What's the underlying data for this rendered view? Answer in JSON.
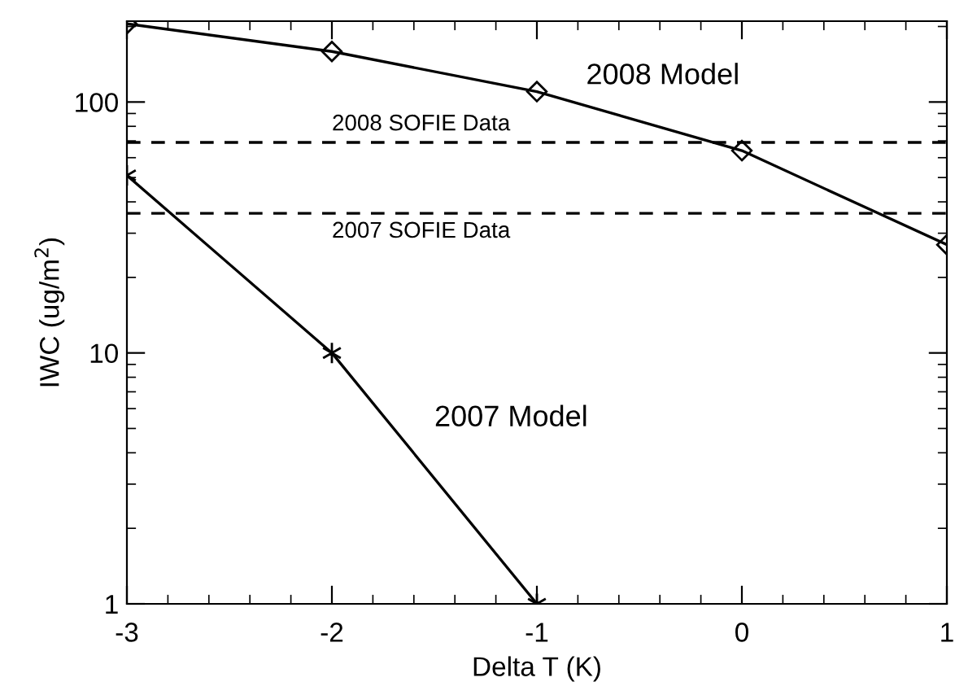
{
  "chart_data": {
    "type": "line",
    "xlabel": "Delta T (K)",
    "ylabel": "IWC (ug/m$^{2}$)",
    "x": [
      -3,
      -2,
      -1,
      0,
      1
    ],
    "series": [
      {
        "name": "2008 Model",
        "color": "#000000",
        "marker": "diamond",
        "values": [
          205,
          159,
          110,
          64,
          27
        ]
      },
      {
        "name": "2007 Model",
        "color": "#000000",
        "marker": "cross",
        "values": [
          51,
          10,
          1,
          null,
          null
        ]
      }
    ],
    "log": "y",
    "xlim": [
      -3,
      1
    ],
    "ylim": [
      1,
      210
    ],
    "xticks": [
      -3,
      -2,
      -1,
      0,
      1
    ],
    "yticks": [
      1,
      10,
      100
    ],
    "ref_lines": [
      {
        "axis": "y",
        "value": 69,
        "label": "2008 SOFIE Data",
        "color": "#000000",
        "line_style": "dashed"
      },
      {
        "axis": "y",
        "value": 36,
        "label": "2007 SOFIE Data",
        "color": "#000000",
        "line_style": "dashed"
      }
    ],
    "grid": false,
    "line_style": "solid"
  }
}
